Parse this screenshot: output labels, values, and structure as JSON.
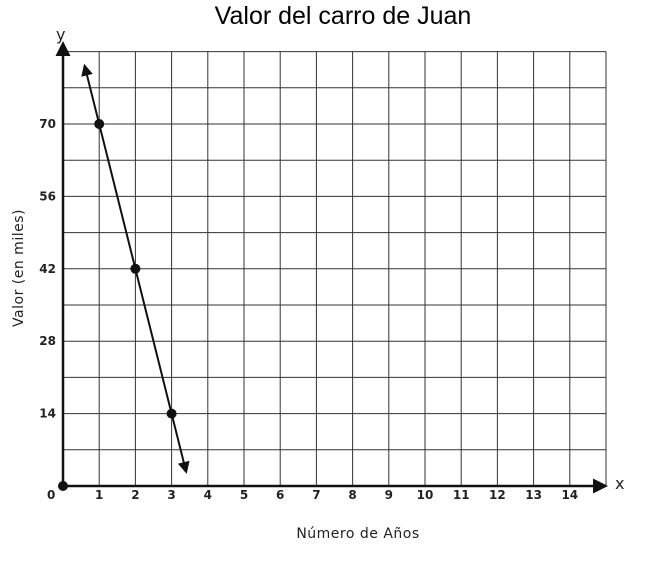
{
  "chart_data": {
    "type": "line",
    "title": "Valor del carro de Juan",
    "xlabel": "Número de Años",
    "ylabel": "Valor (en miles)",
    "x_axis_letter": "x",
    "y_axis_letter": "y",
    "origin_label": "0",
    "xlim": [
      0,
      15
    ],
    "ylim": [
      0,
      84
    ],
    "x_ticks": [
      1,
      2,
      3,
      4,
      5,
      6,
      7,
      8,
      9,
      10,
      11,
      12,
      13,
      14
    ],
    "y_ticks": [
      14,
      28,
      42,
      56,
      70
    ],
    "grid": true,
    "x_grid_step": 1,
    "y_grid_step": 7,
    "points": [
      {
        "x": 0,
        "y": 0
      },
      {
        "x": 1,
        "y": 70
      },
      {
        "x": 2,
        "y": 42
      },
      {
        "x": 3,
        "y": 14
      }
    ],
    "line": {
      "slope": -28,
      "intercept": 98,
      "x_start": 0.6,
      "x_end": 3.4,
      "arrows": "both"
    }
  }
}
